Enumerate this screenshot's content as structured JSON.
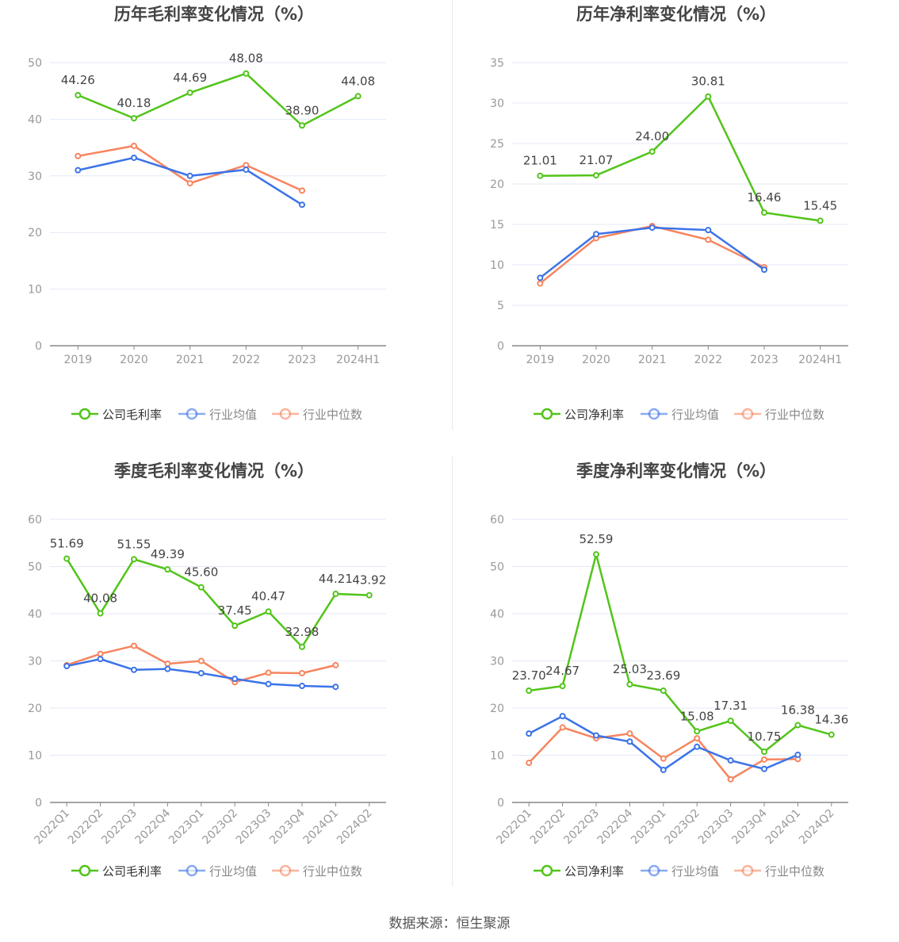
{
  "footer": "数据来源：恒生聚源",
  "colors": {
    "company": "#52c41a",
    "avg": "#3b73e8",
    "median": "#f7845e"
  },
  "chart_data": [
    {
      "type": "line",
      "title": "历年毛利率变化情况（%）",
      "categories": [
        "2019",
        "2020",
        "2021",
        "2022",
        "2023",
        "2024H1"
      ],
      "ylim": [
        0,
        50
      ],
      "yticks": [
        0,
        10,
        20,
        30,
        40,
        50
      ],
      "grid": true,
      "legend": "bottom",
      "rotate_labels": false,
      "series": [
        {
          "name": "公司毛利率",
          "key": "company",
          "labels": true,
          "values": [
            44.26,
            40.18,
            44.69,
            48.08,
            38.9,
            44.08
          ]
        },
        {
          "name": "行业均值",
          "key": "avg",
          "labels": false,
          "values": [
            31.0,
            33.2,
            30.0,
            31.1,
            24.9,
            null
          ]
        },
        {
          "name": "行业中位数",
          "key": "median",
          "labels": false,
          "values": [
            33.5,
            35.3,
            28.7,
            31.9,
            27.4,
            null
          ]
        }
      ]
    },
    {
      "type": "line",
      "title": "历年净利率变化情况（%）",
      "categories": [
        "2019",
        "2020",
        "2021",
        "2022",
        "2023",
        "2024H1"
      ],
      "ylim": [
        0,
        35
      ],
      "yticks": [
        0,
        5,
        10,
        15,
        20,
        25,
        30,
        35
      ],
      "grid": true,
      "legend": "bottom",
      "rotate_labels": false,
      "series": [
        {
          "name": "公司净利率",
          "key": "company",
          "labels": true,
          "values": [
            21.01,
            21.07,
            24.0,
            30.81,
            16.46,
            15.45
          ]
        },
        {
          "name": "行业均值",
          "key": "avg",
          "labels": false,
          "values": [
            8.4,
            13.8,
            14.6,
            14.3,
            9.4,
            null
          ]
        },
        {
          "name": "行业中位数",
          "key": "median",
          "labels": false,
          "values": [
            7.7,
            13.3,
            14.8,
            13.1,
            9.7,
            null
          ]
        }
      ]
    },
    {
      "type": "line",
      "title": "季度毛利率变化情况（%）",
      "categories": [
        "2022Q1",
        "2022Q2",
        "2022Q3",
        "2022Q4",
        "2023Q1",
        "2023Q2",
        "2023Q3",
        "2023Q4",
        "2024Q1",
        "2024Q2"
      ],
      "ylim": [
        0,
        60
      ],
      "yticks": [
        0,
        10,
        20,
        30,
        40,
        50,
        60
      ],
      "grid": true,
      "legend": "bottom",
      "rotate_labels": true,
      "series": [
        {
          "name": "公司毛利率",
          "key": "company",
          "labels": true,
          "values": [
            51.69,
            40.08,
            51.55,
            49.39,
            45.6,
            37.45,
            40.47,
            32.98,
            44.21,
            43.92
          ]
        },
        {
          "name": "行业均值",
          "key": "avg",
          "labels": false,
          "values": [
            28.9,
            30.4,
            28.1,
            28.3,
            27.4,
            26.2,
            25.1,
            24.7,
            24.5,
            null
          ]
        },
        {
          "name": "行业中位数",
          "key": "median",
          "labels": false,
          "values": [
            29.1,
            31.5,
            33.2,
            29.4,
            30.0,
            25.5,
            27.5,
            27.4,
            29.1,
            null
          ]
        }
      ]
    },
    {
      "type": "line",
      "title": "季度净利率变化情况（%）",
      "categories": [
        "2022Q1",
        "2022Q2",
        "2022Q3",
        "2022Q4",
        "2023Q1",
        "2023Q2",
        "2023Q3",
        "2023Q4",
        "2024Q1",
        "2024Q2"
      ],
      "ylim": [
        0,
        60
      ],
      "yticks": [
        0,
        10,
        20,
        30,
        40,
        50,
        60
      ],
      "grid": true,
      "legend": "bottom",
      "rotate_labels": true,
      "series": [
        {
          "name": "公司净利率",
          "key": "company",
          "labels": true,
          "values": [
            23.7,
            24.67,
            52.59,
            25.03,
            23.69,
            15.08,
            17.31,
            10.75,
            16.38,
            14.36
          ]
        },
        {
          "name": "行业均值",
          "key": "avg",
          "labels": false,
          "values": [
            14.6,
            18.3,
            14.2,
            12.9,
            6.9,
            11.8,
            8.9,
            7.1,
            10.1,
            null
          ]
        },
        {
          "name": "行业中位数",
          "key": "median",
          "labels": false,
          "values": [
            8.4,
            15.9,
            13.6,
            14.6,
            9.3,
            13.6,
            4.9,
            9.1,
            9.2,
            null
          ]
        }
      ]
    }
  ]
}
